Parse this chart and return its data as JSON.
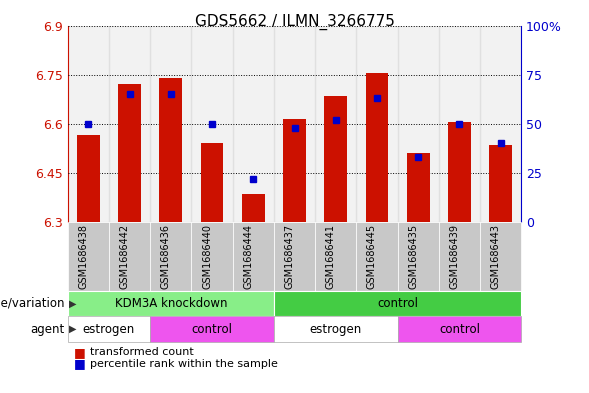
{
  "title": "GDS5662 / ILMN_3266775",
  "samples": [
    "GSM1686438",
    "GSM1686442",
    "GSM1686436",
    "GSM1686440",
    "GSM1686444",
    "GSM1686437",
    "GSM1686441",
    "GSM1686445",
    "GSM1686435",
    "GSM1686439",
    "GSM1686443"
  ],
  "transformed_count": [
    6.565,
    6.72,
    6.74,
    6.54,
    6.385,
    6.615,
    6.685,
    6.755,
    6.51,
    6.605,
    6.535
  ],
  "percentile_rank": [
    50,
    65,
    65,
    50,
    22,
    48,
    52,
    63,
    33,
    50,
    40
  ],
  "y_min": 6.3,
  "y_max": 6.9,
  "y_ticks": [
    6.3,
    6.45,
    6.6,
    6.75,
    6.9
  ],
  "right_y_ticks": [
    0,
    25,
    50,
    75,
    100
  ],
  "right_y_labels": [
    "0",
    "25",
    "50",
    "75",
    "100%"
  ],
  "bar_color": "#CC1100",
  "dot_color": "#0000CC",
  "bar_bottom": 6.3,
  "geno_groups": [
    {
      "label": "KDM3A knockdown",
      "start": 0,
      "end": 5,
      "color": "#88EE88"
    },
    {
      "label": "control",
      "start": 5,
      "end": 11,
      "color": "#44CC44"
    }
  ],
  "agent_groups": [
    {
      "label": "estrogen",
      "start": 0,
      "end": 2,
      "color": "#FFFFFF"
    },
    {
      "label": "control",
      "start": 2,
      "end": 5,
      "color": "#EE55EE"
    },
    {
      "label": "estrogen",
      "start": 5,
      "end": 8,
      "color": "#FFFFFF"
    },
    {
      "label": "control",
      "start": 8,
      "end": 11,
      "color": "#EE55EE"
    }
  ],
  "legend_items": [
    {
      "label": "transformed count",
      "color": "#CC1100"
    },
    {
      "label": "percentile rank within the sample",
      "color": "#0000CC"
    }
  ],
  "label_genotype": "genotype/variation",
  "label_agent": "agent",
  "col_bg_color": "#CCCCCC",
  "col_bg_alt": "#DDDDDD"
}
